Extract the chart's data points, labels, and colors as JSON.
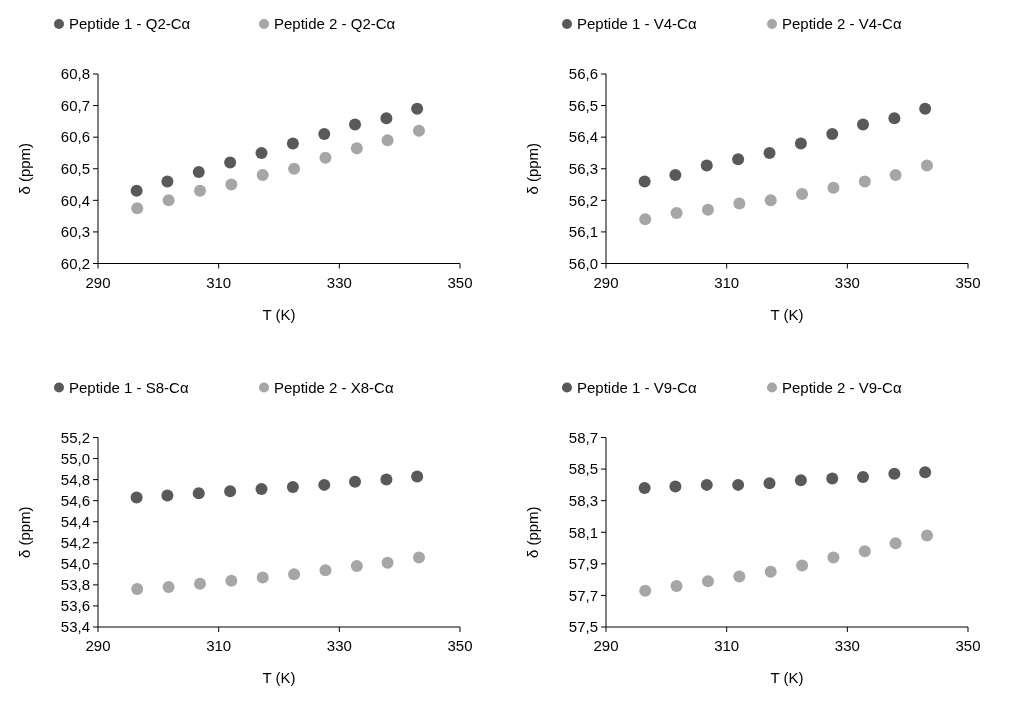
{
  "chart_data": [
    {
      "type": "scatter",
      "xlabel": "T (K)",
      "ylabel": "δ (ppm)",
      "legend": "top",
      "marker": "circle",
      "grid": false,
      "xlim": [
        290,
        350
      ],
      "xticks": [
        290,
        310,
        330,
        350
      ],
      "ylim": [
        60.2,
        60.8
      ],
      "yticks": [
        {
          "value": 60.2,
          "label": "60,2"
        },
        {
          "value": 60.3,
          "label": "60,3"
        },
        {
          "value": 60.4,
          "label": "60,4"
        },
        {
          "value": 60.5,
          "label": "60,5"
        },
        {
          "value": 60.6,
          "label": "60,6"
        },
        {
          "value": 60.7,
          "label": "60,7"
        },
        {
          "value": 60.8,
          "label": "60,8"
        }
      ],
      "series": [
        {
          "name": "Peptide 1 - Q2-Cα",
          "color": "#595959",
          "x": [
            296.4,
            301.5,
            306.7,
            311.9,
            317.1,
            322.3,
            327.5,
            332.6,
            337.8,
            342.9
          ],
          "values": [
            60.43,
            60.46,
            60.49,
            60.52,
            60.55,
            60.58,
            60.61,
            60.64,
            60.66,
            60.69
          ]
        },
        {
          "name": "Peptide 2 - Q2-Cα",
          "color": "#a6a6a6",
          "x": [
            296.5,
            301.7,
            306.9,
            312.1,
            317.3,
            322.5,
            327.7,
            332.9,
            338.0,
            343.2
          ],
          "values": [
            60.375,
            60.4,
            60.43,
            60.45,
            60.48,
            60.5,
            60.535,
            60.565,
            60.59,
            60.62
          ]
        }
      ]
    },
    {
      "type": "scatter",
      "xlabel": "T (K)",
      "ylabel": "δ (ppm)",
      "legend": "top",
      "marker": "circle",
      "grid": false,
      "xlim": [
        290,
        350
      ],
      "xticks": [
        290,
        310,
        330,
        350
      ],
      "ylim": [
        56.0,
        56.6
      ],
      "yticks": [
        {
          "value": 56.0,
          "label": "56,0"
        },
        {
          "value": 56.1,
          "label": "56,1"
        },
        {
          "value": 56.2,
          "label": "56,2"
        },
        {
          "value": 56.3,
          "label": "56,3"
        },
        {
          "value": 56.4,
          "label": "56,4"
        },
        {
          "value": 56.5,
          "label": "56,5"
        },
        {
          "value": 56.6,
          "label": "56,6"
        }
      ],
      "series": [
        {
          "name": "Peptide 1 - V4-Cα",
          "color": "#595959",
          "x": [
            296.4,
            301.5,
            306.7,
            311.9,
            317.1,
            322.3,
            327.5,
            332.6,
            337.8,
            342.9
          ],
          "values": [
            56.26,
            56.28,
            56.31,
            56.33,
            56.35,
            56.38,
            56.41,
            56.44,
            56.46,
            56.49
          ]
        },
        {
          "name": "Peptide 2 - V4-Cα",
          "color": "#a6a6a6",
          "x": [
            296.5,
            301.7,
            306.9,
            312.1,
            317.3,
            322.5,
            327.7,
            332.9,
            338.0,
            343.2
          ],
          "values": [
            56.14,
            56.16,
            56.17,
            56.19,
            56.2,
            56.22,
            56.24,
            56.26,
            56.28,
            56.31
          ]
        }
      ]
    },
    {
      "type": "scatter",
      "xlabel": "T (K)",
      "ylabel": "δ (ppm)",
      "legend": "top",
      "marker": "circle",
      "grid": false,
      "xlim": [
        290,
        350
      ],
      "xticks": [
        290,
        310,
        330,
        350
      ],
      "ylim": [
        53.4,
        55.2
      ],
      "yticks": [
        {
          "value": 53.4,
          "label": "53,4"
        },
        {
          "value": 53.6,
          "label": "53,6"
        },
        {
          "value": 53.8,
          "label": "53,8"
        },
        {
          "value": 54.0,
          "label": "54,0"
        },
        {
          "value": 54.2,
          "label": "54,2"
        },
        {
          "value": 54.4,
          "label": "54,4"
        },
        {
          "value": 54.6,
          "label": "54,6"
        },
        {
          "value": 54.8,
          "label": "54,8"
        },
        {
          "value": 55.0,
          "label": "55,0"
        },
        {
          "value": 55.2,
          "label": "55,2"
        }
      ],
      "series": [
        {
          "name": "Peptide 1 - S8-Cα",
          "color": "#595959",
          "x": [
            296.4,
            301.5,
            306.7,
            311.9,
            317.1,
            322.3,
            327.5,
            332.6,
            337.8,
            342.9
          ],
          "values": [
            54.63,
            54.65,
            54.67,
            54.69,
            54.71,
            54.73,
            54.75,
            54.78,
            54.8,
            54.83
          ]
        },
        {
          "name": "Peptide 2 - X8-Cα",
          "color": "#a6a6a6",
          "x": [
            296.5,
            301.7,
            306.9,
            312.1,
            317.3,
            322.5,
            327.7,
            332.9,
            338.0,
            343.2
          ],
          "values": [
            53.76,
            53.78,
            53.81,
            53.84,
            53.87,
            53.9,
            53.94,
            53.98,
            54.01,
            54.06
          ]
        }
      ]
    },
    {
      "type": "scatter",
      "xlabel": "T (K)",
      "ylabel": "δ (ppm)",
      "legend": "top",
      "marker": "circle",
      "grid": false,
      "xlim": [
        290,
        350
      ],
      "xticks": [
        290,
        310,
        330,
        350
      ],
      "ylim": [
        57.5,
        58.7
      ],
      "yticks": [
        {
          "value": 57.5,
          "label": "57,5"
        },
        {
          "value": 57.7,
          "label": "57,7"
        },
        {
          "value": 57.9,
          "label": "57,9"
        },
        {
          "value": 58.1,
          "label": "58,1"
        },
        {
          "value": 58.3,
          "label": "58,3"
        },
        {
          "value": 58.5,
          "label": "58,5"
        },
        {
          "value": 58.7,
          "label": "58,7"
        }
      ],
      "series": [
        {
          "name": "Peptide 1 - V9-Cα",
          "color": "#595959",
          "x": [
            296.4,
            301.5,
            306.7,
            311.9,
            317.1,
            322.3,
            327.5,
            332.6,
            337.8,
            342.9
          ],
          "values": [
            58.38,
            58.39,
            58.4,
            58.4,
            58.41,
            58.43,
            58.44,
            58.45,
            58.47,
            58.48
          ]
        },
        {
          "name": "Peptide 2 - V9-Cα",
          "color": "#a6a6a6",
          "x": [
            296.5,
            301.7,
            306.9,
            312.1,
            317.3,
            322.5,
            327.7,
            332.9,
            338.0,
            343.2
          ],
          "values": [
            57.73,
            57.76,
            57.79,
            57.82,
            57.85,
            57.89,
            57.94,
            57.98,
            58.03,
            58.08
          ]
        }
      ]
    }
  ]
}
